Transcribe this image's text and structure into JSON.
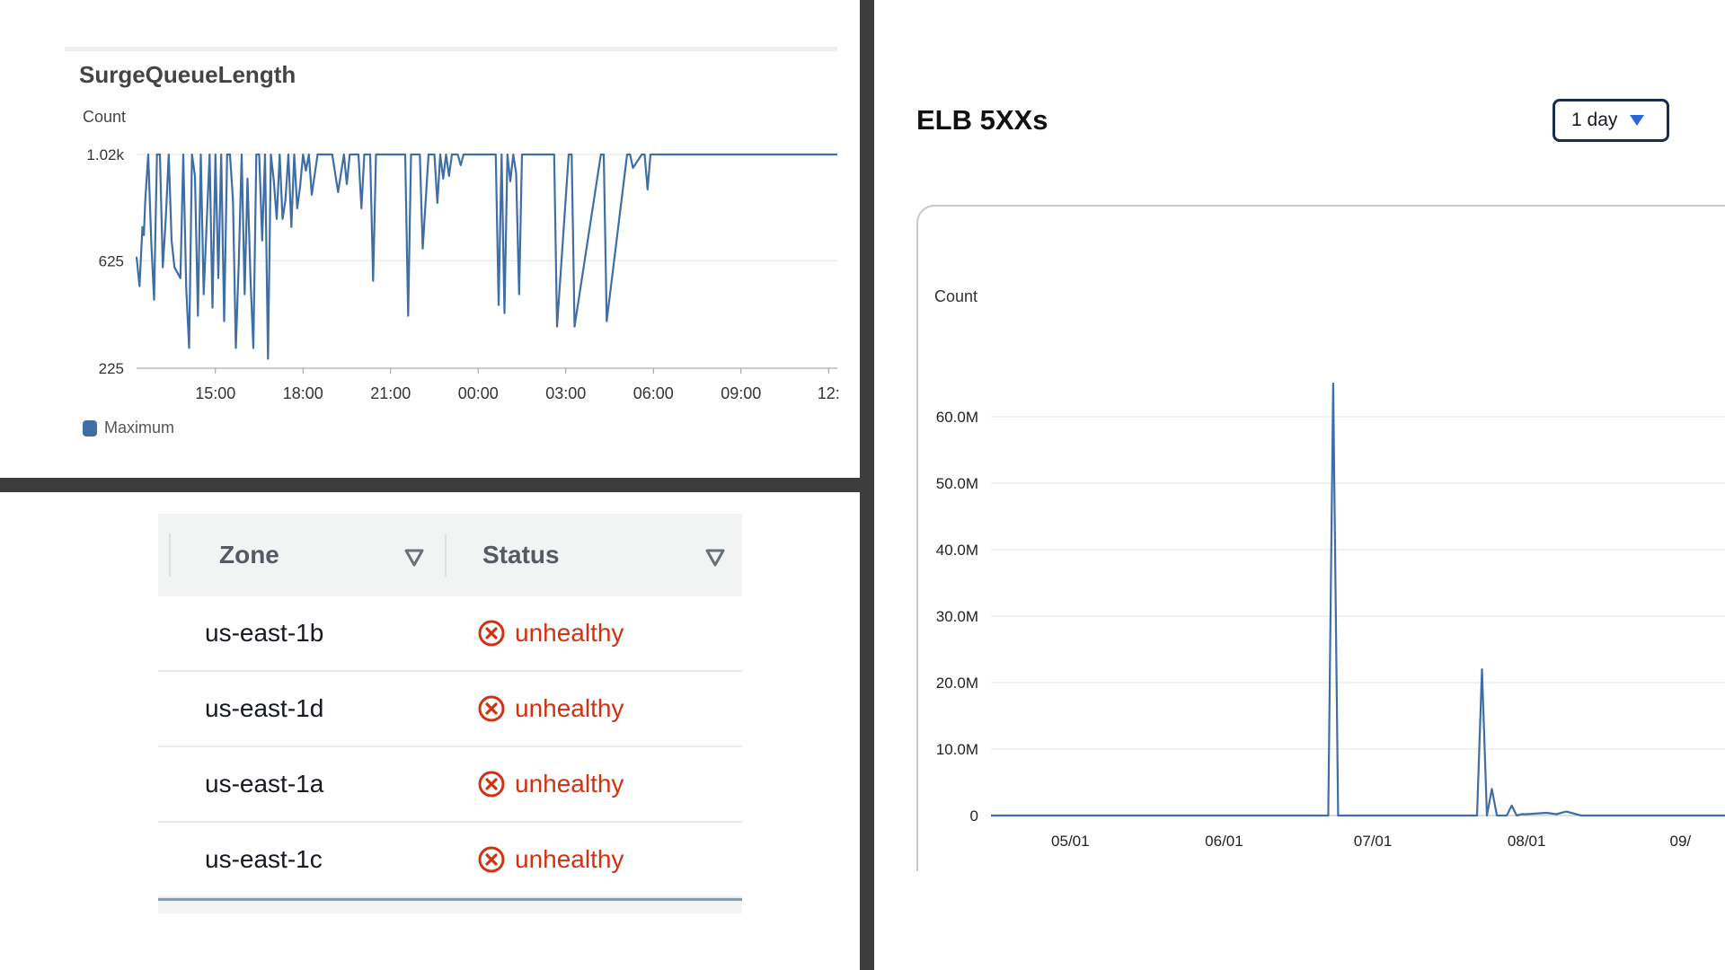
{
  "chart_data": [
    {
      "type": "line",
      "title": "SurgeQueueLength",
      "ylabel": "Count",
      "xlabel": "",
      "ylim": [
        225,
        1020
      ],
      "yticks": [
        {
          "value": 1020,
          "label": "1.02k"
        },
        {
          "value": 625,
          "label": "625"
        },
        {
          "value": 225,
          "label": "225"
        }
      ],
      "xlim": [
        12.3,
        36.3
      ],
      "xticks": [
        {
          "value": 15,
          "label": "15:00"
        },
        {
          "value": 18,
          "label": "18:00"
        },
        {
          "value": 21,
          "label": "21:00"
        },
        {
          "value": 24,
          "label": "00:00"
        },
        {
          "value": 27,
          "label": "03:00"
        },
        {
          "value": 30,
          "label": "06:00"
        },
        {
          "value": 33,
          "label": "09:00"
        },
        {
          "value": 36,
          "label": "12:"
        }
      ],
      "grid": true,
      "legend": "bottom-left",
      "series": [
        {
          "name": "Maximum",
          "color": "#3f6ea5",
          "x": [
            12.3,
            12.4,
            12.5,
            12.55,
            12.6,
            12.7,
            12.8,
            12.9,
            13.0,
            13.1,
            13.2,
            13.3,
            13.4,
            13.5,
            13.6,
            13.7,
            13.8,
            13.9,
            14.0,
            14.1,
            14.2,
            14.3,
            14.4,
            14.5,
            14.6,
            14.7,
            14.8,
            14.9,
            15.0,
            15.1,
            15.2,
            15.3,
            15.4,
            15.5,
            15.6,
            15.7,
            15.8,
            15.9,
            16.0,
            16.1,
            16.2,
            16.3,
            16.4,
            16.5,
            16.6,
            16.7,
            16.8,
            16.9,
            17.0,
            17.1,
            17.2,
            17.3,
            17.4,
            17.5,
            17.6,
            17.7,
            17.8,
            17.9,
            18.0,
            18.1,
            18.2,
            18.3,
            18.5,
            18.7,
            19.0,
            19.2,
            19.4,
            19.5,
            19.6,
            19.9,
            20.0,
            20.1,
            20.3,
            20.4,
            20.5,
            20.7,
            20.8,
            20.9,
            21.5,
            21.6,
            21.7,
            21.8,
            21.9,
            22.0,
            22.1,
            22.3,
            22.5,
            22.6,
            22.7,
            22.8,
            22.9,
            23.0,
            23.1,
            23.3,
            23.4,
            23.5,
            23.6,
            24.6,
            24.7,
            24.8,
            24.9,
            25.0,
            25.1,
            25.2,
            25.3,
            25.4,
            25.5,
            26.5,
            26.6,
            26.7,
            27.1,
            27.2,
            27.3,
            28.2,
            28.3,
            28.4,
            29.1,
            29.2,
            29.3,
            29.6,
            29.7,
            29.8,
            29.9,
            36.3
          ],
          "y": [
            640,
            530,
            750,
            720,
            850,
            1020,
            700,
            480,
            1020,
            1020,
            600,
            780,
            1020,
            700,
            600,
            580,
            560,
            1020,
            520,
            300,
            1020,
            940,
            420,
            1020,
            500,
            760,
            1020,
            450,
            1020,
            560,
            1020,
            400,
            1020,
            1020,
            850,
            300,
            620,
            1020,
            500,
            930,
            560,
            300,
            1020,
            1020,
            700,
            1020,
            260,
            1020,
            920,
            780,
            1020,
            780,
            850,
            1020,
            750,
            1020,
            820,
            900,
            1020,
            960,
            1020,
            870,
            1020,
            1020,
            1020,
            880,
            1020,
            910,
            1020,
            1020,
            820,
            1020,
            1020,
            550,
            1020,
            1020,
            1020,
            1020,
            1020,
            420,
            1020,
            1020,
            1020,
            1020,
            670,
            1020,
            1020,
            840,
            1020,
            930,
            1020,
            940,
            1020,
            1020,
            980,
            1020,
            1020,
            1020,
            460,
            1020,
            430,
            1020,
            920,
            1020,
            950,
            500,
            1020,
            1020,
            1020,
            380,
            1020,
            1020,
            380,
            1020,
            1020,
            400,
            1020,
            1020,
            970,
            1020,
            1020,
            890,
            1020,
            1020
          ]
        }
      ]
    },
    {
      "type": "line",
      "title": "ELB 5XXs",
      "ylabel": "Count",
      "xlabel": "",
      "ylim": [
        0,
        70000000
      ],
      "yticks": [
        {
          "value": 0,
          "label": "0"
        },
        {
          "value": 10000000,
          "label": "10.0M"
        },
        {
          "value": 20000000,
          "label": "20.0M"
        },
        {
          "value": 30000000,
          "label": "30.0M"
        },
        {
          "value": 40000000,
          "label": "40.0M"
        },
        {
          "value": 50000000,
          "label": "50.0M"
        },
        {
          "value": 60000000,
          "label": "60.0M"
        }
      ],
      "xlim": [
        "2023-04-15",
        "2023-09-10"
      ],
      "xticks": [
        {
          "value": "2023-05-01",
          "label": "05/01"
        },
        {
          "value": "2023-06-01",
          "label": "06/01"
        },
        {
          "value": "2023-07-01",
          "label": "07/01"
        },
        {
          "value": "2023-08-01",
          "label": "08/01"
        },
        {
          "value": "2023-09-01",
          "label": "09/"
        }
      ],
      "grid": true,
      "series": [
        {
          "color": "#3f6ea5",
          "x": [
            "2023-04-15",
            "2023-06-22",
            "2023-06-23",
            "2023-06-24",
            "2023-06-25",
            "2023-07-22",
            "2023-07-23",
            "2023-07-24",
            "2023-07-25",
            "2023-07-26",
            "2023-07-27",
            "2023-07-28",
            "2023-07-29",
            "2023-07-30",
            "2023-07-31",
            "2023-08-01",
            "2023-08-05",
            "2023-08-07",
            "2023-08-09",
            "2023-08-12",
            "2023-09-10"
          ],
          "y": [
            0,
            0,
            65000000,
            0,
            0,
            0,
            22000000,
            0,
            4000000,
            0,
            0,
            0,
            1500000,
            0,
            200000,
            200000,
            400000,
            200000,
            600000,
            0,
            0
          ]
        }
      ]
    }
  ],
  "surge_legend_label": "Maximum",
  "zones_table": {
    "columns": [
      {
        "label": "Zone"
      },
      {
        "label": "Status"
      }
    ],
    "rows": [
      {
        "zone": "us-east-1b",
        "status": "unhealthy"
      },
      {
        "zone": "us-east-1d",
        "status": "unhealthy"
      },
      {
        "zone": "us-east-1a",
        "status": "unhealthy"
      },
      {
        "zone": "us-east-1c",
        "status": "unhealthy"
      }
    ],
    "status_color": "#d13212"
  },
  "elb_range_select": {
    "value": "1 day",
    "icon": "caret-down-icon"
  }
}
